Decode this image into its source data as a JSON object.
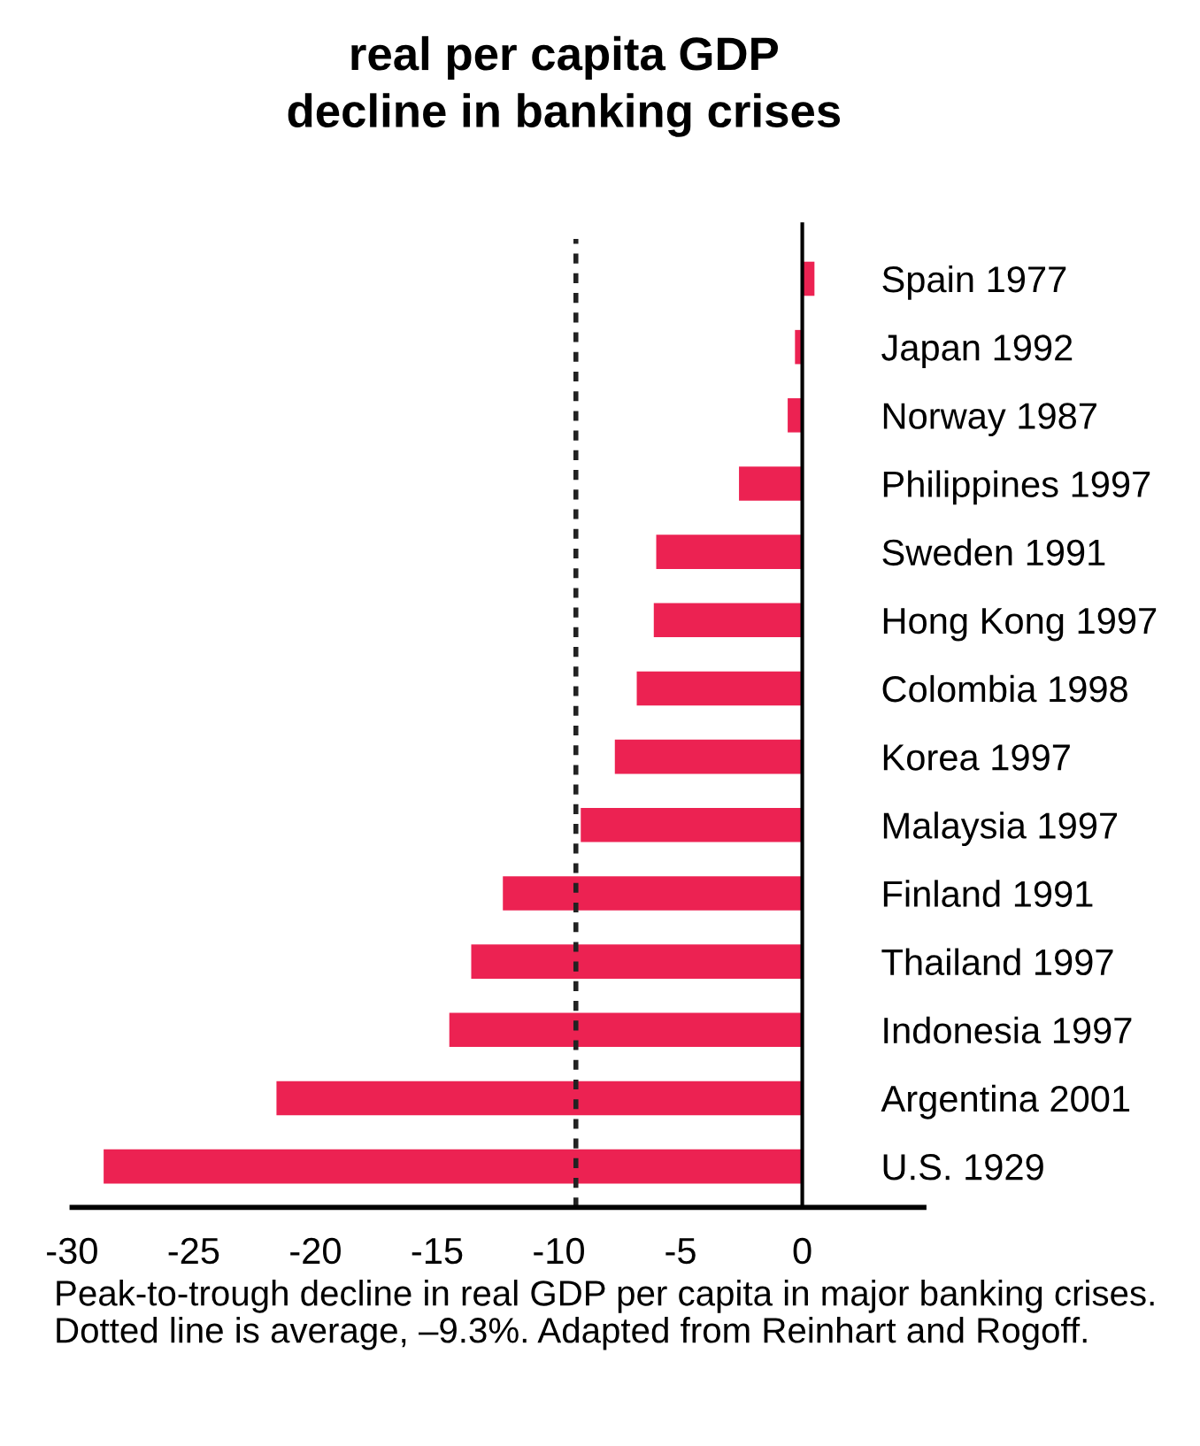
{
  "chart_data": {
    "type": "bar",
    "orientation": "horizontal",
    "title": "real per capita GDP\ndecline in banking crises",
    "categories": [
      "Spain 1977",
      "Japan 1992",
      "Norway 1987",
      "Philippines 1997",
      "Sweden 1991",
      "Hong Kong 1997",
      "Colombia 1998",
      "Korea 1997",
      "Malaysia 1997",
      "Finland 1991",
      "Thailand 1997",
      "Indonesia 1997",
      "Argentina 2001",
      "U.S. 1929"
    ],
    "values": [
      0.5,
      -0.3,
      -0.6,
      -2.6,
      -6.0,
      -6.1,
      -6.8,
      -7.7,
      -9.1,
      -12.3,
      -13.6,
      -14.5,
      -21.6,
      -28.7
    ],
    "color": "#ec2252",
    "xlim": [
      -30,
      5
    ],
    "xticks": [
      -30,
      -25,
      -20,
      -15,
      -10,
      -5,
      0
    ],
    "grid": false,
    "legend": false,
    "ref_lines": [
      {
        "axis": "x",
        "value": -9.3,
        "label": null,
        "color": "#222222",
        "line_style": "dotted"
      }
    ],
    "annotations": [
      "Peak-to-trough decline in real GDP per capita in major banking crises. Dotted line is average, –9.3%. Adapted from Reinhart and Rogoff."
    ]
  }
}
